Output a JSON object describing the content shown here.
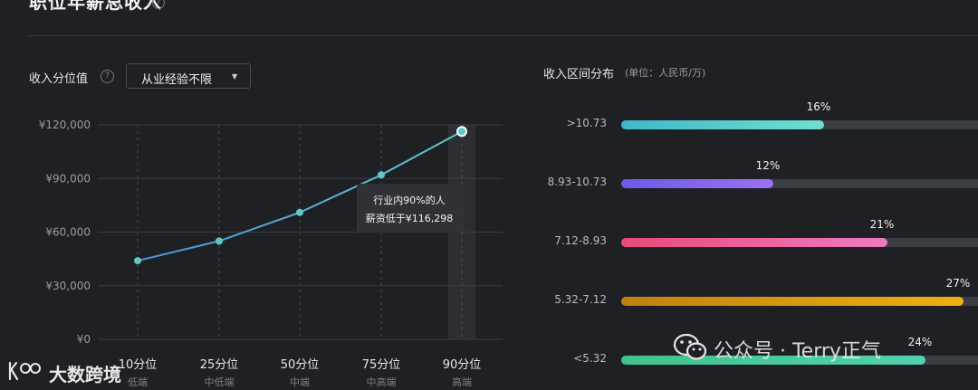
{
  "header": {
    "title": "职位年薪总收入",
    "help_icon": "question-circle-icon"
  },
  "percentile_panel": {
    "label": "收入分位值",
    "help_icon": "question-circle-icon",
    "filter": {
      "selected": "从业经验不限",
      "caret_icon": "triangle-down-icon"
    },
    "tooltip": {
      "line1": "行业内90%的人",
      "line2": "薪资低于¥116,298"
    }
  },
  "distribution_panel": {
    "title": "收入区间分布",
    "unit": "(单位：人民币/万)"
  },
  "chart_data": [
    {
      "type": "line",
      "ylim": [
        0,
        120000
      ],
      "yticks": [
        0,
        30000,
        60000,
        90000,
        120000
      ],
      "ytick_labels": [
        "¥0",
        "¥30,000",
        "¥60,000",
        "¥90,000",
        "¥120,000"
      ],
      "categories": [
        "10分位",
        "25分位",
        "50分位",
        "75分位",
        "90分位"
      ],
      "sublabels": [
        "低端",
        "中低端",
        "中端",
        "中高端",
        "高端"
      ],
      "values": [
        44000,
        55000,
        71000,
        92000,
        116298
      ],
      "highlight_index": 4,
      "grid": true,
      "colors": {
        "line_start": "#4a90d9",
        "line_end": "#5ec8c8",
        "point": "#5ec8c8",
        "highlight_band": "#2c2e33"
      }
    },
    {
      "type": "bar",
      "orientation": "horizontal",
      "categories": [
        ">10.73",
        "8.93-10.73",
        "7.12-8.93",
        "5.32-7.12",
        "<5.32"
      ],
      "values": [
        16,
        12,
        21,
        27,
        24
      ],
      "value_labels": [
        "16%",
        "12%",
        "21%",
        "27%",
        "24%"
      ],
      "xlim": [
        0,
        30
      ],
      "colors": [
        [
          "#3fb7c9",
          "#6ee0d0"
        ],
        [
          "#6a5be8",
          "#9b72f0"
        ],
        [
          "#e84a7a",
          "#f07ac0"
        ],
        [
          "#c08010",
          "#f0b010"
        ],
        [
          "#3fc48a",
          "#52d0b0"
        ]
      ]
    }
  ],
  "watermarks": {
    "left_text": "大数跨境",
    "left_logo": "kuajing-logo-icon",
    "right_text": "公众号 · Terry正气",
    "right_icon": "wechat-icon"
  }
}
